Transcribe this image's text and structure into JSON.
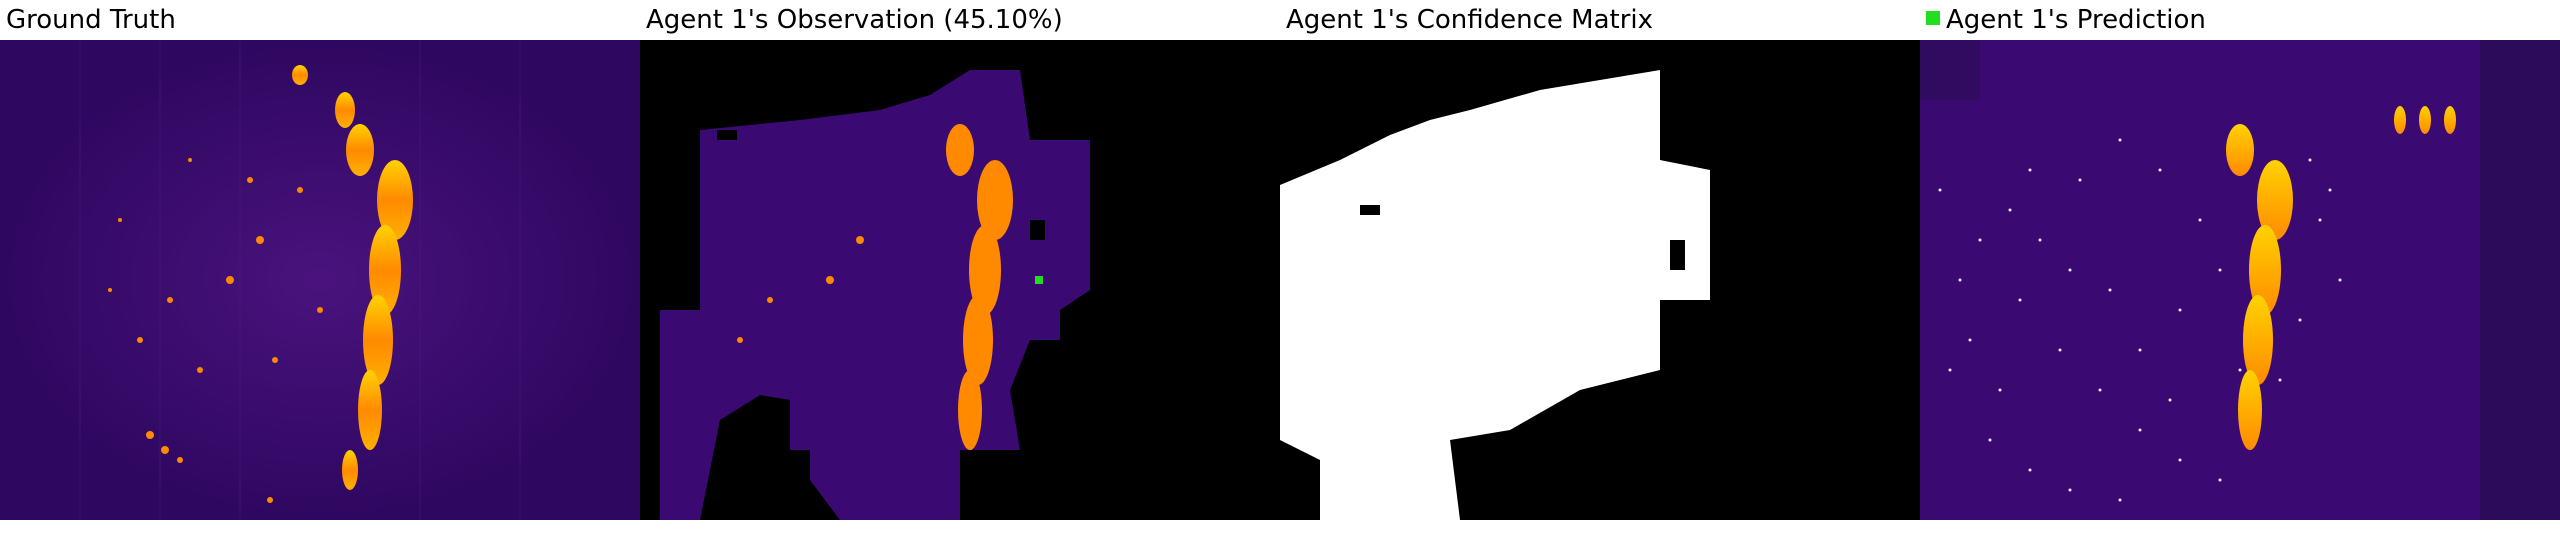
{
  "panels": [
    {
      "id": "ground_truth",
      "title": "Ground Truth"
    },
    {
      "id": "observation",
      "title": "Agent 1's Observation (45.10%)"
    },
    {
      "id": "confidence",
      "title": "Agent 1's Confidence Matrix"
    },
    {
      "id": "prediction",
      "title": "Agent 1's Prediction",
      "legend_color": "#22dd22"
    }
  ],
  "colors": {
    "background": "#3a0a72",
    "hot": "#ff8a00",
    "bright": "#ffd200",
    "mask_white": "#ffffff",
    "mask_black": "#000000",
    "marker_green": "#22dd22"
  }
}
